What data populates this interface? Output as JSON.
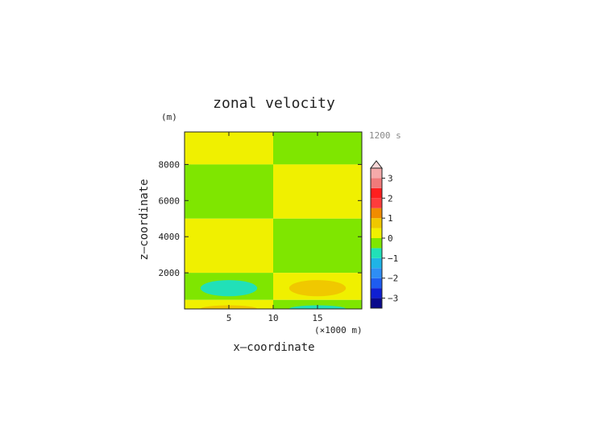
{
  "chart_data": {
    "type": "heatmap",
    "title": "zonal velocity",
    "xlabel": "x—coordinate",
    "ylabel": "z—coordinate",
    "x_unit": "(×1000 m)",
    "y_unit": "(m)",
    "time_label": "1200 s",
    "xlim": [
      0,
      20
    ],
    "ylim": [
      0,
      9800
    ],
    "x_ticks": [
      5,
      10,
      15
    ],
    "y_ticks": [
      2000,
      4000,
      6000,
      8000
    ],
    "colorbar": {
      "levels": [
        -3.5,
        -3,
        -2.5,
        -2,
        -1.5,
        -1,
        -0.5,
        0,
        0.5,
        1,
        1.5,
        2,
        2.5,
        3,
        3.5
      ],
      "colors": [
        "#0a0a8c",
        "#0f1fd2",
        "#1e5cf0",
        "#2e8ef5",
        "#1fb4e6",
        "#21e0b8",
        "#7fe600",
        "#f0f000",
        "#f0c800",
        "#f08c00",
        "#ff3c3c",
        "#ff1e1e",
        "#f07a7a",
        "#f5aaaa"
      ],
      "tick_values": [
        -3,
        -2,
        -1,
        0,
        1,
        2,
        3
      ],
      "tick_labels": [
        "−3",
        "−2",
        "−1",
        "0",
        "1",
        "2",
        "3"
      ],
      "overflow": "triangle-top"
    },
    "regions": [
      {
        "x": [
          0,
          10
        ],
        "z": [
          8000,
          9800
        ],
        "value": 0.25
      },
      {
        "x": [
          0,
          10
        ],
        "z": [
          5000,
          8000
        ],
        "value": -0.25
      },
      {
        "x": [
          0,
          10
        ],
        "z": [
          2000,
          5000
        ],
        "value": 0.25
      },
      {
        "x": [
          0,
          10
        ],
        "z": [
          500,
          2000
        ],
        "value": -0.25
      },
      {
        "x": [
          0,
          10
        ],
        "z": [
          0,
          500
        ],
        "value": 0.25
      },
      {
        "x": [
          10,
          20
        ],
        "z": [
          8000,
          9800
        ],
        "value": -0.25
      },
      {
        "x": [
          10,
          20
        ],
        "z": [
          5000,
          8000
        ],
        "value": 0.25
      },
      {
        "x": [
          10,
          20
        ],
        "z": [
          2000,
          5000
        ],
        "value": -0.25
      },
      {
        "x": [
          10,
          20
        ],
        "z": [
          500,
          2000
        ],
        "value": 0.25
      },
      {
        "x": [
          10,
          20
        ],
        "z": [
          0,
          500
        ],
        "value": -0.25
      }
    ],
    "features": [
      {
        "cx": 5,
        "cz": 1150,
        "rx": 3.2,
        "rz": 450,
        "value": -0.75
      },
      {
        "cx": 15,
        "cz": 1150,
        "rx": 3.2,
        "rz": 450,
        "value": 0.75
      },
      {
        "cx": 5,
        "cz": 0,
        "rx": 3.2,
        "rz": 200,
        "value": 0.75
      },
      {
        "cx": 15,
        "cz": 0,
        "rx": 3.2,
        "rz": 200,
        "value": -0.75
      }
    ]
  }
}
